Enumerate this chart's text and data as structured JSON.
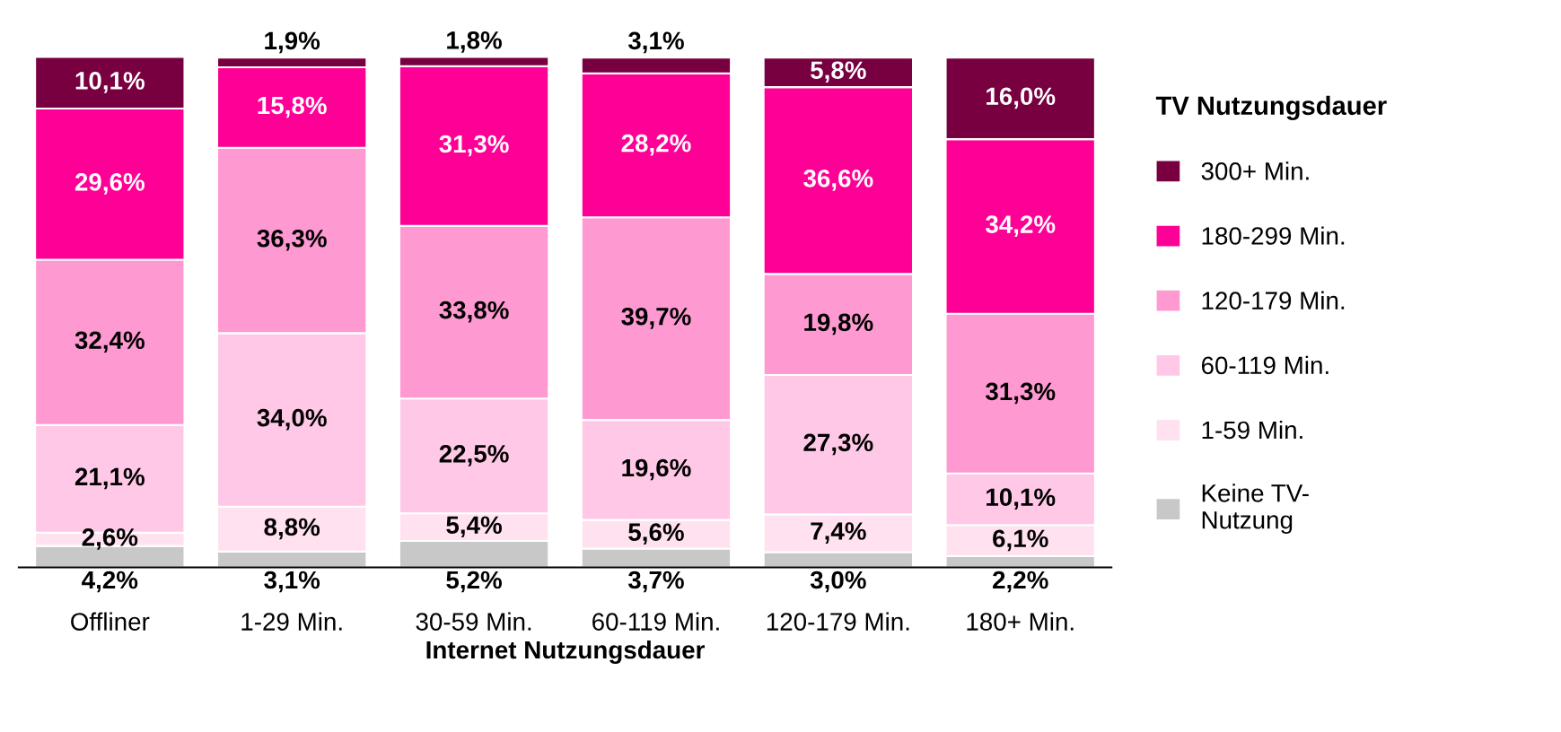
{
  "chart_data": {
    "type": "bar",
    "stacked": true,
    "xlabel": "Internet Nutzungsdauer",
    "legend_title": "TV Nutzungsdauer",
    "legend": "right",
    "grid": false,
    "categories": [
      "Offliner",
      "1-29 Min.",
      "30-59 Min.",
      "60-119 Min.",
      "120-179 Min.",
      "180+ Min."
    ],
    "series": [
      {
        "name": "Keine TV-\nNutzung",
        "color": "#c8c8c8",
        "values": [
          4.2,
          3.1,
          5.2,
          3.7,
          3.0,
          2.2
        ],
        "value_labels": [
          "4,2%",
          "3,1%",
          "5,2%",
          "3,7%",
          "3,0%",
          "2,2%"
        ]
      },
      {
        "name": "1-59 Min.",
        "color": "#ffe1f0",
        "values": [
          2.6,
          8.8,
          5.4,
          5.6,
          7.4,
          6.1
        ],
        "value_labels": [
          "2,6%",
          "8,8%",
          "5,4%",
          "5,6%",
          "7,4%",
          "6,1%"
        ]
      },
      {
        "name": "60-119 Min.",
        "color": "#ffc8e6",
        "values": [
          21.1,
          34.0,
          22.5,
          19.6,
          27.3,
          10.1
        ],
        "value_labels": [
          "21,1%",
          "34,0%",
          "22,5%",
          "19,6%",
          "27,3%",
          "10,1%"
        ]
      },
      {
        "name": "120-179 Min.",
        "color": "#ff99d2",
        "values": [
          32.4,
          36.3,
          33.8,
          39.7,
          19.8,
          31.3
        ],
        "value_labels": [
          "32,4%",
          "36,3%",
          "33,8%",
          "39,7%",
          "19,8%",
          "31,3%"
        ]
      },
      {
        "name": "180-299 Min.",
        "color": "#ff0096",
        "values": [
          29.6,
          15.8,
          31.3,
          28.2,
          36.6,
          34.2
        ],
        "value_labels": [
          "29,6%",
          "15,8%",
          "31,3%",
          "28,2%",
          "36,6%",
          "34,2%"
        ]
      },
      {
        "name": "300+ Min.",
        "color": "#780041",
        "values": [
          10.1,
          1.9,
          1.8,
          3.1,
          5.8,
          16.0
        ],
        "value_labels": [
          "10,1%",
          "1,9%",
          "1,8%",
          "3,1%",
          "5,8%",
          "16,0%"
        ]
      }
    ]
  }
}
